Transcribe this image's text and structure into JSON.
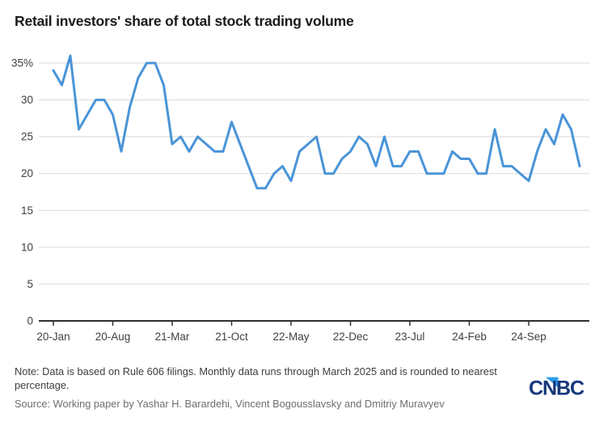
{
  "header": {
    "title": "Retail investors' share of total stock trading volume"
  },
  "chart_data": {
    "type": "line",
    "title": "Retail investors' share of total stock trading volume",
    "unit": "%",
    "grid": "horizontal",
    "legend": "none",
    "line_color": "#4a94d8",
    "grid_color": "#d9d9d9",
    "axis_color": "#2f2f2f",
    "label_color": "#404040",
    "ylim": [
      0,
      37
    ],
    "y_ticks": [
      0,
      5,
      10,
      15,
      20,
      25,
      30,
      35
    ],
    "y_tick_labels": [
      "0",
      "5",
      "10",
      "15",
      "20",
      "25",
      "30",
      "35%"
    ],
    "x_tick_indices": [
      0,
      7,
      14,
      21,
      28,
      35,
      42,
      49,
      56
    ],
    "x_tick_labels": [
      "20-Jan",
      "20-Aug",
      "21-Mar",
      "21-Oct",
      "22-May",
      "22-Dec",
      "23-Jul",
      "24-Feb",
      "24-Sep"
    ],
    "x": [
      "2020-01",
      "2020-02",
      "2020-03",
      "2020-04",
      "2020-05",
      "2020-06",
      "2020-07",
      "2020-08",
      "2020-09",
      "2020-10",
      "2020-11",
      "2020-12",
      "2021-01",
      "2021-02",
      "2021-03",
      "2021-04",
      "2021-05",
      "2021-06",
      "2021-07",
      "2021-08",
      "2021-09",
      "2021-10",
      "2021-11",
      "2021-12",
      "2022-01",
      "2022-02",
      "2022-03",
      "2022-04",
      "2022-05",
      "2022-06",
      "2022-07",
      "2022-08",
      "2022-09",
      "2022-10",
      "2022-11",
      "2022-12",
      "2023-01",
      "2023-02",
      "2023-03",
      "2023-04",
      "2023-05",
      "2023-06",
      "2023-07",
      "2023-08",
      "2023-09",
      "2023-10",
      "2023-11",
      "2023-12",
      "2024-01",
      "2024-02",
      "2024-03",
      "2024-04",
      "2024-05",
      "2024-06",
      "2024-07",
      "2024-08",
      "2024-09",
      "2024-10",
      "2024-11",
      "2024-12",
      "2025-01",
      "2025-02",
      "2025-03"
    ],
    "values": [
      34,
      32,
      36,
      26,
      28,
      30,
      30,
      28,
      23,
      29,
      33,
      35,
      35,
      32,
      24,
      25,
      23,
      25,
      24,
      23,
      23,
      27,
      24,
      21,
      18,
      18,
      20,
      21,
      19,
      23,
      24,
      25,
      20,
      20,
      22,
      23,
      25,
      24,
      21,
      25,
      21,
      21,
      23,
      23,
      20,
      20,
      20,
      23,
      22,
      22,
      20,
      20,
      26,
      21,
      21,
      20,
      19,
      23,
      26,
      24,
      28,
      26,
      21
    ]
  },
  "footer": {
    "note": "Note: Data is based on Rule 606 filings. Monthly data runs through March 2025 and is rounded to nearest percentage.",
    "source": "Source: Working paper by Yashar H. Barardehi, Vincent Bogousslavsky and Dmitriy Muravyev"
  },
  "logo": {
    "text": "CNBC",
    "color_navy": "#17387c",
    "color_blue": "#2e9ded"
  }
}
